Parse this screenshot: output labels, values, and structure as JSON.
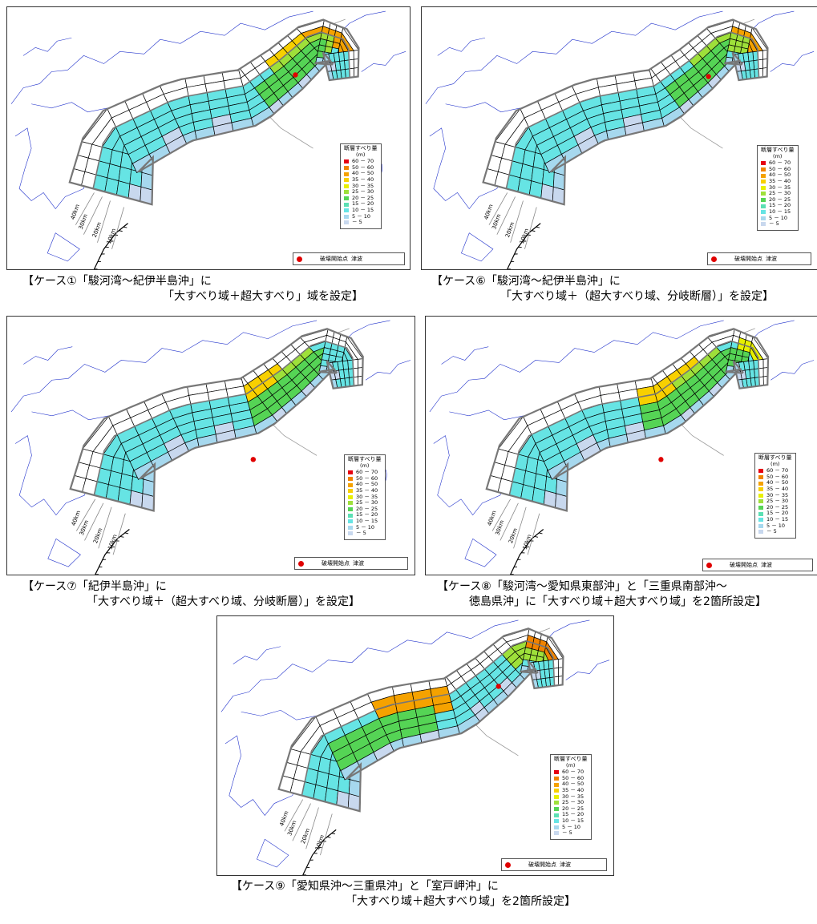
{
  "legend": {
    "title": "断層すべり量",
    "unit": "(m)",
    "items": [
      {
        "label": "60 － 70",
        "color": "#e60012"
      },
      {
        "label": "50 － 60",
        "color": "#f08300"
      },
      {
        "label": "40 － 50",
        "color": "#f5a200"
      },
      {
        "label": "35 － 40",
        "color": "#f8d000"
      },
      {
        "label": "30 － 35",
        "color": "#e8f000"
      },
      {
        "label": "25 － 30",
        "color": "#9ee03a"
      },
      {
        "label": "20 － 25",
        "color": "#55d455"
      },
      {
        "label": "15 － 20",
        "color": "#5ce0b4"
      },
      {
        "label": "10 － 15",
        "color": "#66e4e4"
      },
      {
        "label": "5 － 10",
        "color": "#a6d8ee"
      },
      {
        "label": "－ 5",
        "color": "#c8d8ee"
      }
    ]
  },
  "footer": {
    "start_label": "破壊開始点",
    "tsunami_label": "津波"
  },
  "contour_labels": [
    "40km",
    "30km",
    "20km",
    "10km"
  ],
  "cases": [
    {
      "id": "case1",
      "caption_line1": "【ケース①「駿河湾～紀伊半島沖」に",
      "caption_line2": "「大すべり域＋超大すべり」域を設定】",
      "hotspots": [
        {
          "range": "35 － 40",
          "color": "#f8d000"
        },
        {
          "range": "40 － 50",
          "color": "#f5a200"
        },
        {
          "range": "25 － 30",
          "color": "#9ee03a"
        },
        {
          "range": "20 － 25",
          "color": "#55d455"
        }
      ]
    },
    {
      "id": "case6",
      "caption_line1": "【ケース⑥「駿河湾～紀伊半島沖」に",
      "caption_line2": "「大すべり域＋（超大すべり域、分岐断層）」を設定】",
      "hotspots": [
        {
          "range": "40 － 50",
          "color": "#f5a200"
        },
        {
          "range": "25 － 30",
          "color": "#9ee03a"
        },
        {
          "range": "20 － 25",
          "color": "#55d455"
        }
      ]
    },
    {
      "id": "case7",
      "caption_line1": "【ケース⑦「紀伊半島沖」に",
      "caption_line2": "「大すべり域＋（超大すべり域、分岐断層）」を設定】",
      "hotspots": [
        {
          "range": "35 － 40",
          "color": "#f8d000"
        },
        {
          "range": "25 － 30",
          "color": "#9ee03a"
        },
        {
          "range": "20 － 25",
          "color": "#55d455"
        }
      ]
    },
    {
      "id": "case8",
      "caption_line1": "【ケース⑧「駿河湾～愛知県東部沖」と「三重県南部沖～",
      "caption_line2": "徳島県沖」に「大すべり域＋超大すべり域」を2箇所設定】",
      "hotspots": [
        {
          "range": "35 － 40",
          "color": "#f8d000"
        },
        {
          "range": "30 － 35",
          "color": "#e8f000"
        },
        {
          "range": "25 － 30",
          "color": "#9ee03a"
        },
        {
          "range": "20 － 25",
          "color": "#55d455"
        }
      ]
    },
    {
      "id": "case9",
      "caption_line1": "【ケース⑨「愛知県沖～三重県沖」と「室戸岬沖」に",
      "caption_line2": "「大すべり域＋超大すべり域」を2箇所設定】",
      "hotspots": [
        {
          "range": "40 － 50",
          "color": "#f5a200"
        },
        {
          "range": "25 － 30",
          "color": "#9ee03a"
        },
        {
          "range": "20 － 25",
          "color": "#55d455"
        },
        {
          "range": "50 － 60",
          "color": "#f08300"
        }
      ]
    }
  ]
}
